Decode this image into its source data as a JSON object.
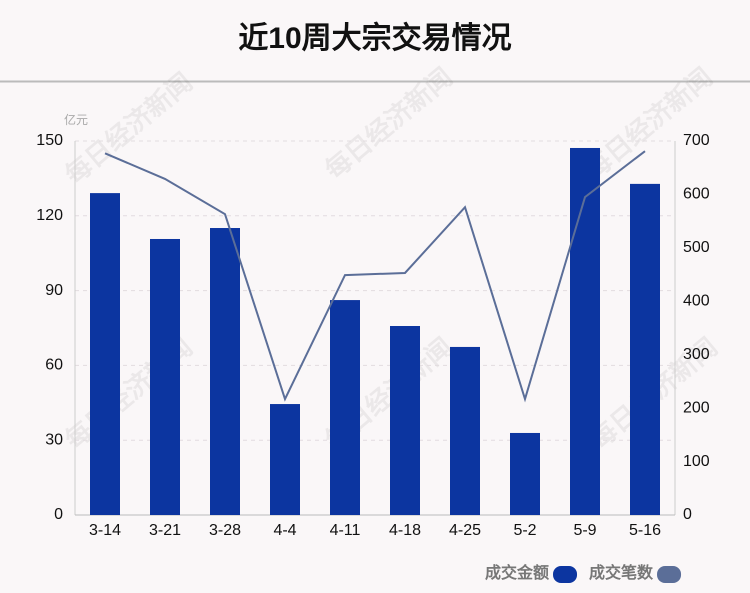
{
  "chart_data": {
    "type": "bar",
    "title": "近10周大宗交易情况",
    "y_unit": "亿元",
    "watermark": "每日经济新闻",
    "categories": [
      "3-14",
      "3-21",
      "3-28",
      "4-4",
      "4-11",
      "4-18",
      "4-25",
      "5-2",
      "5-9",
      "5-16"
    ],
    "series": [
      {
        "name": "成交金额",
        "color": "#0c35a0",
        "type": "bar",
        "values": [
          129.1,
          110.7,
          115.1,
          44.5,
          86.2,
          75.8,
          67.4,
          32.9,
          147.2,
          132.8
        ]
      },
      {
        "name": "成交笔数",
        "color": "#5b6e98",
        "type": "line",
        "axis": "y2",
        "values": [
          677,
          629,
          563,
          217,
          449,
          453,
          576,
          217,
          595,
          681
        ]
      }
    ],
    "ylim": [
      0,
      150
    ],
    "yticks": [
      0,
      30,
      60,
      90,
      120,
      150
    ],
    "y2lim": [
      0,
      700
    ],
    "y2ticks": [
      0,
      100,
      200,
      300,
      400,
      500,
      600,
      700
    ],
    "grid": true
  }
}
